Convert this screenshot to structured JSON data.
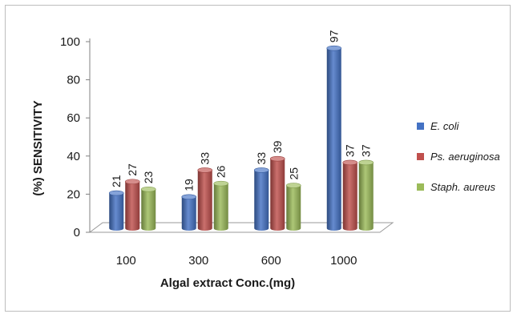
{
  "chart_data": {
    "type": "bar",
    "xlabel": "Algal extract Conc.(mg)",
    "ylabel": "(%) SENSITIVITY",
    "categories": [
      "100",
      "300",
      "600",
      "1000"
    ],
    "ylim": [
      0,
      100
    ],
    "yticks": [
      "0",
      "20",
      "40",
      "60",
      "80",
      "100"
    ],
    "grid": false,
    "legend_position": "right",
    "series": [
      {
        "name": "E. coli",
        "values": [
          21,
          19,
          33,
          97
        ],
        "color": "#4472c4"
      },
      {
        "name": "Ps. aeruginosa",
        "values": [
          27,
          33,
          39,
          37
        ],
        "color": "#c0504d"
      },
      {
        "name": "Staph. aureus",
        "values": [
          23,
          26,
          25,
          37
        ],
        "color": "#9bbb59"
      }
    ]
  }
}
